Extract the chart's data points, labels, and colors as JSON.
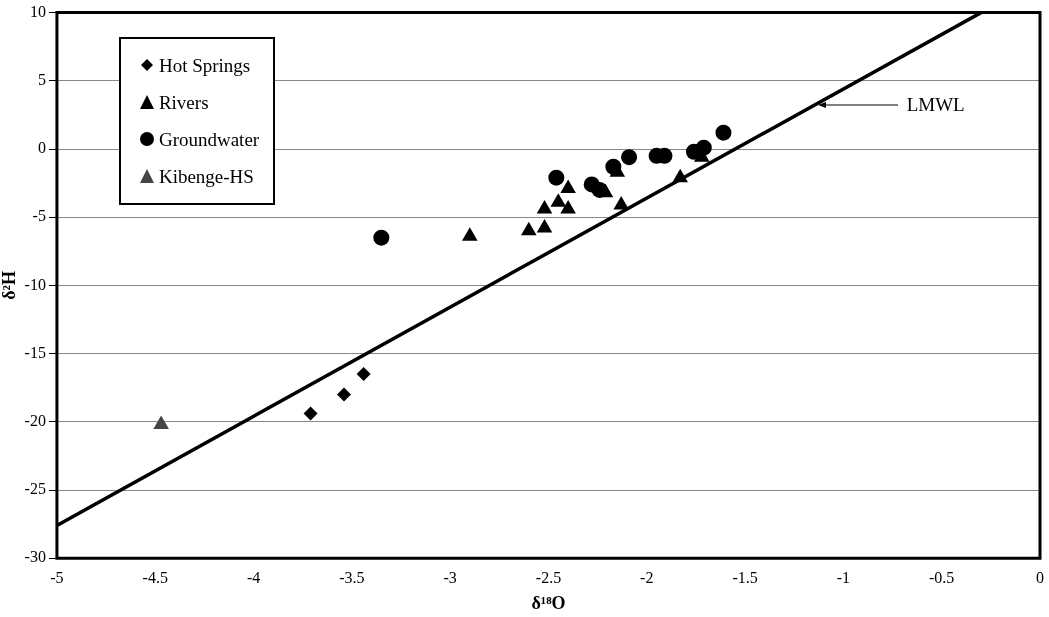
{
  "chart_data": {
    "type": "scatter",
    "xlabel": "δ¹⁸O",
    "ylabel": "δ²H",
    "series": [
      {
        "name": "Hot Springs",
        "color": "#000000",
        "marker": "diamond",
        "x": [
          -3.71,
          -3.54,
          -3.44
        ],
        "values": [
          -19.4,
          -18.0,
          -16.5
        ]
      },
      {
        "name": "Rivers",
        "color": "#000000",
        "marker": "triangle",
        "x": [
          -2.9,
          -2.6,
          -2.52,
          -2.52,
          -2.45,
          -2.4,
          -2.4,
          -2.21,
          -2.15,
          -2.13,
          -1.83,
          -1.72
        ],
        "values": [
          -6.4,
          -6.0,
          -5.8,
          -4.4,
          -3.9,
          -4.4,
          -2.9,
          -3.2,
          -1.7,
          -4.1,
          -2.1,
          -0.6
        ]
      },
      {
        "name": "Groundwater",
        "color": "#000000",
        "marker": "circle",
        "x": [
          -3.35,
          -2.46,
          -2.28,
          -2.24,
          -2.17,
          -2.09,
          -1.95,
          -1.91,
          -1.76,
          -1.71,
          -1.61
        ],
        "values": [
          -6.5,
          -2.1,
          -2.6,
          -3.0,
          -1.3,
          -0.6,
          -0.5,
          -0.5,
          -0.2,
          0.1,
          1.2
        ]
      },
      {
        "name": "Kibenge-HS",
        "color": "#444444",
        "marker": "triangle",
        "x": [
          -4.47
        ],
        "values": [
          -20.2
        ]
      },
      {
        "name": "LMWL",
        "type": "line",
        "color": "#000000",
        "marker": "none",
        "x": [
          -5,
          -0.3
        ],
        "values": [
          -27.6,
          10.0
        ]
      }
    ],
    "xlim": [
      -5,
      0
    ],
    "xticks": [
      -5,
      -4.5,
      -4,
      -3.5,
      -3,
      -2.5,
      -2,
      -1.5,
      -1,
      -0.5,
      0
    ],
    "ylim": [
      -30,
      10
    ],
    "yticks": [
      -30,
      -25,
      -20,
      -15,
      -10,
      -5,
      0,
      5,
      10
    ],
    "grid": "y",
    "legend": "top left"
  }
}
